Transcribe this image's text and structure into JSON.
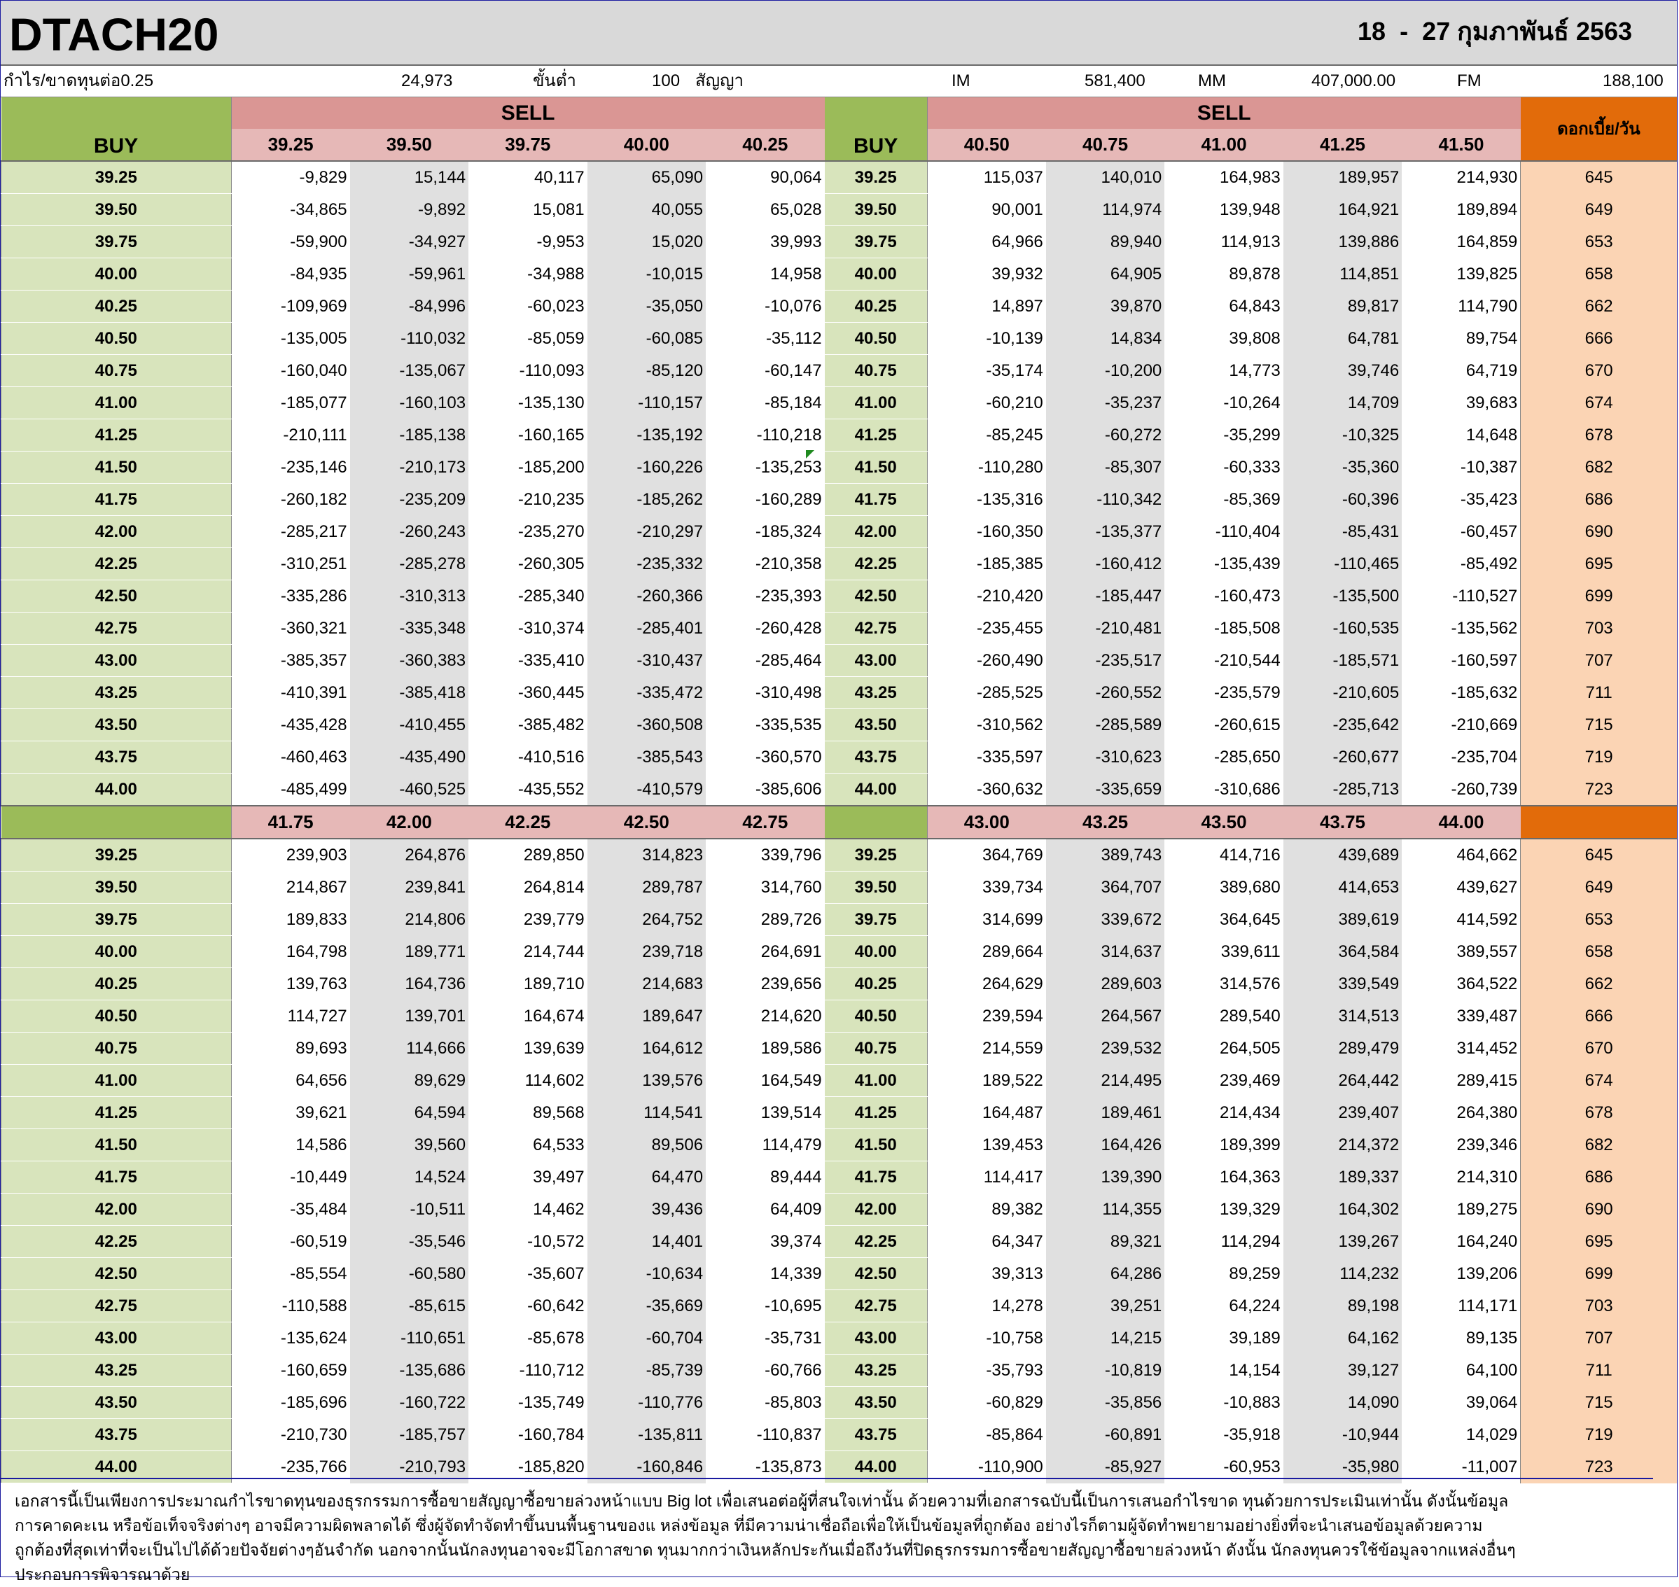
{
  "header": {
    "title": "DTACH20",
    "date_range": "18  -  27 กุมภาพันธ์ 2563"
  },
  "params": {
    "pl_label": "กำไร/ขาดทุนต่อ0.25",
    "pl_value": "24,973",
    "min_label": "ขั้นต่ำ",
    "min_value": "100",
    "unit_label": "สัญญา",
    "im_label": "IM",
    "im_value": "581,400",
    "mm_label": "MM",
    "mm_value": "407,000.00",
    "fm_label": "FM",
    "fm_value": "188,100"
  },
  "labels": {
    "buy": "BUY",
    "sell": "SELL",
    "interest": "ดอกเบี้ย/วัน"
  },
  "buy_prices": [
    "39.25",
    "39.50",
    "39.75",
    "40.00",
    "40.25",
    "40.50",
    "40.75",
    "41.00",
    "41.25",
    "41.50",
    "41.75",
    "42.00",
    "42.25",
    "42.50",
    "42.75",
    "43.00",
    "43.25",
    "43.50",
    "43.75",
    "44.00"
  ],
  "interest": [
    "645",
    "649",
    "653",
    "658",
    "662",
    "666",
    "670",
    "674",
    "678",
    "682",
    "686",
    "690",
    "695",
    "699",
    "703",
    "707",
    "711",
    "715",
    "719",
    "723"
  ],
  "table1": {
    "sell_left": [
      "39.25",
      "39.50",
      "39.75",
      "40.00",
      "40.25"
    ],
    "sell_right": [
      "40.50",
      "40.75",
      "41.00",
      "41.25",
      "41.50"
    ],
    "rows": [
      [
        "-9,829",
        "15,144",
        "40,117",
        "65,090",
        "90,064",
        "115,037",
        "140,010",
        "164,983",
        "189,957",
        "214,930"
      ],
      [
        "-34,865",
        "-9,892",
        "15,081",
        "40,055",
        "65,028",
        "90,001",
        "114,974",
        "139,948",
        "164,921",
        "189,894"
      ],
      [
        "-59,900",
        "-34,927",
        "-9,953",
        "15,020",
        "39,993",
        "64,966",
        "89,940",
        "114,913",
        "139,886",
        "164,859"
      ],
      [
        "-84,935",
        "-59,961",
        "-34,988",
        "-10,015",
        "14,958",
        "39,932",
        "64,905",
        "89,878",
        "114,851",
        "139,825"
      ],
      [
        "-109,969",
        "-84,996",
        "-60,023",
        "-35,050",
        "-10,076",
        "14,897",
        "39,870",
        "64,843",
        "89,817",
        "114,790"
      ],
      [
        "-135,005",
        "-110,032",
        "-85,059",
        "-60,085",
        "-35,112",
        "-10,139",
        "14,834",
        "39,808",
        "64,781",
        "89,754"
      ],
      [
        "-160,040",
        "-135,067",
        "-110,093",
        "-85,120",
        "-60,147",
        "-35,174",
        "-10,200",
        "14,773",
        "39,746",
        "64,719"
      ],
      [
        "-185,077",
        "-160,103",
        "-135,130",
        "-110,157",
        "-85,184",
        "-60,210",
        "-35,237",
        "-10,264",
        "14,709",
        "39,683"
      ],
      [
        "-210,111",
        "-185,138",
        "-160,165",
        "-135,192",
        "-110,218",
        "-85,245",
        "-60,272",
        "-35,299",
        "-10,325",
        "14,648"
      ],
      [
        "-235,146",
        "-210,173",
        "-185,200",
        "-160,226",
        "-135,253",
        "-110,280",
        "-85,307",
        "-60,333",
        "-35,360",
        "-10,387"
      ],
      [
        "-260,182",
        "-235,209",
        "-210,235",
        "-185,262",
        "-160,289",
        "-135,316",
        "-110,342",
        "-85,369",
        "-60,396",
        "-35,423"
      ],
      [
        "-285,217",
        "-260,243",
        "-235,270",
        "-210,297",
        "-185,324",
        "-160,350",
        "-135,377",
        "-110,404",
        "-85,431",
        "-60,457"
      ],
      [
        "-310,251",
        "-285,278",
        "-260,305",
        "-235,332",
        "-210,358",
        "-185,385",
        "-160,412",
        "-135,439",
        "-110,465",
        "-85,492"
      ],
      [
        "-335,286",
        "-310,313",
        "-285,340",
        "-260,366",
        "-235,393",
        "-210,420",
        "-185,447",
        "-160,473",
        "-135,500",
        "-110,527"
      ],
      [
        "-360,321",
        "-335,348",
        "-310,374",
        "-285,401",
        "-260,428",
        "-235,455",
        "-210,481",
        "-185,508",
        "-160,535",
        "-135,562"
      ],
      [
        "-385,357",
        "-360,383",
        "-335,410",
        "-310,437",
        "-285,464",
        "-260,490",
        "-235,517",
        "-210,544",
        "-185,571",
        "-160,597"
      ],
      [
        "-410,391",
        "-385,418",
        "-360,445",
        "-335,472",
        "-310,498",
        "-285,525",
        "-260,552",
        "-235,579",
        "-210,605",
        "-185,632"
      ],
      [
        "-435,428",
        "-410,455",
        "-385,482",
        "-360,508",
        "-335,535",
        "-310,562",
        "-285,589",
        "-260,615",
        "-235,642",
        "-210,669"
      ],
      [
        "-460,463",
        "-435,490",
        "-410,516",
        "-385,543",
        "-360,570",
        "-335,597",
        "-310,623",
        "-285,650",
        "-260,677",
        "-235,704"
      ],
      [
        "-485,499",
        "-460,525",
        "-435,552",
        "-410,579",
        "-385,606",
        "-360,632",
        "-335,659",
        "-310,686",
        "-285,713",
        "-260,739"
      ]
    ]
  },
  "table2": {
    "sell_left": [
      "41.75",
      "42.00",
      "42.25",
      "42.50",
      "42.75"
    ],
    "sell_right": [
      "43.00",
      "43.25",
      "43.50",
      "43.75",
      "44.00"
    ],
    "rows": [
      [
        "239,903",
        "264,876",
        "289,850",
        "314,823",
        "339,796",
        "364,769",
        "389,743",
        "414,716",
        "439,689",
        "464,662"
      ],
      [
        "214,867",
        "239,841",
        "264,814",
        "289,787",
        "314,760",
        "339,734",
        "364,707",
        "389,680",
        "414,653",
        "439,627"
      ],
      [
        "189,833",
        "214,806",
        "239,779",
        "264,752",
        "289,726",
        "314,699",
        "339,672",
        "364,645",
        "389,619",
        "414,592"
      ],
      [
        "164,798",
        "189,771",
        "214,744",
        "239,718",
        "264,691",
        "289,664",
        "314,637",
        "339,611",
        "364,584",
        "389,557"
      ],
      [
        "139,763",
        "164,736",
        "189,710",
        "214,683",
        "239,656",
        "264,629",
        "289,603",
        "314,576",
        "339,549",
        "364,522"
      ],
      [
        "114,727",
        "139,701",
        "164,674",
        "189,647",
        "214,620",
        "239,594",
        "264,567",
        "289,540",
        "314,513",
        "339,487"
      ],
      [
        "89,693",
        "114,666",
        "139,639",
        "164,612",
        "189,586",
        "214,559",
        "239,532",
        "264,505",
        "289,479",
        "314,452"
      ],
      [
        "64,656",
        "89,629",
        "114,602",
        "139,576",
        "164,549",
        "189,522",
        "214,495",
        "239,469",
        "264,442",
        "289,415"
      ],
      [
        "39,621",
        "64,594",
        "89,568",
        "114,541",
        "139,514",
        "164,487",
        "189,461",
        "214,434",
        "239,407",
        "264,380"
      ],
      [
        "14,586",
        "39,560",
        "64,533",
        "89,506",
        "114,479",
        "139,453",
        "164,426",
        "189,399",
        "214,372",
        "239,346"
      ],
      [
        "-10,449",
        "14,524",
        "39,497",
        "64,470",
        "89,444",
        "114,417",
        "139,390",
        "164,363",
        "189,337",
        "214,310"
      ],
      [
        "-35,484",
        "-10,511",
        "14,462",
        "39,436",
        "64,409",
        "89,382",
        "114,355",
        "139,329",
        "164,302",
        "189,275"
      ],
      [
        "-60,519",
        "-35,546",
        "-10,572",
        "14,401",
        "39,374",
        "64,347",
        "89,321",
        "114,294",
        "139,267",
        "164,240"
      ],
      [
        "-85,554",
        "-60,580",
        "-35,607",
        "-10,634",
        "14,339",
        "39,313",
        "64,286",
        "89,259",
        "114,232",
        "139,206"
      ],
      [
        "-110,588",
        "-85,615",
        "-60,642",
        "-35,669",
        "-10,695",
        "14,278",
        "39,251",
        "64,224",
        "89,198",
        "114,171"
      ],
      [
        "-135,624",
        "-110,651",
        "-85,678",
        "-60,704",
        "-35,731",
        "-10,758",
        "14,215",
        "39,189",
        "64,162",
        "89,135"
      ],
      [
        "-160,659",
        "-135,686",
        "-110,712",
        "-85,739",
        "-60,766",
        "-35,793",
        "-10,819",
        "14,154",
        "39,127",
        "64,100"
      ],
      [
        "-185,696",
        "-160,722",
        "-135,749",
        "-110,776",
        "-85,803",
        "-60,829",
        "-35,856",
        "-10,883",
        "14,090",
        "39,064"
      ],
      [
        "-210,730",
        "-185,757",
        "-160,784",
        "-135,811",
        "-110,837",
        "-85,864",
        "-60,891",
        "-35,918",
        "-10,944",
        "14,029"
      ],
      [
        "-235,766",
        "-210,793",
        "-185,820",
        "-160,846",
        "-135,873",
        "-110,900",
        "-85,927",
        "-60,953",
        "-35,980",
        "-11,007"
      ]
    ]
  },
  "disclaimer": {
    "lines": [
      "เอกสารนี้เป็นเพียงการประมาณกำไรขาดทุนของธุรกรรมการซื้อขายสัญญาซื้อขายล่วงหน้าแบบ  Big lot เพื่อเสนอต่อผู้ที่สนใจเท่านั้น  ด้วยความที่เอกสารฉบับนี้เป็นการเสนอกำไรขาด ทุนด้วยการประเมินเท่านั้น  ดังนั้นข้อมูล",
      "การคาดคะเน  หรือข้อเท็จจริงต่างๆ  อาจมีความผิดพลาดได้  ซึ่งผู้จัดทำจัดทำขึ้นบนพื้นฐานของแ หล่งข้อมูล ที่มีความน่าเชื่อถือเพื่อให้เป็นข้อมูลที่ถูกต้อง  อย่างไรก็ตามผู้จัดทำพยายามอย่างยิ่งที่จะนำเสนอข้อมูลด้วยความ",
      "ถูกต้องที่สุดเท่าที่จะเป็นไปได้ด้วยปัจจัยต่างๆอันจำกัด  นอกจากนั้นนักลงทุนอาจจะมีโอกาสขาด ทุนมากกว่าเงินหลักประกันเมื่อถึงวันที่ปิดธุรกรรมการซื้อขายสัญญาซื้อขายล่วงหน้า  ดังนั้น  นักลงทุนควรใช้ข้อมูลจากแหล่งอื่นๆ",
      "ประกอบการพิจารณาด้วย"
    ]
  }
}
